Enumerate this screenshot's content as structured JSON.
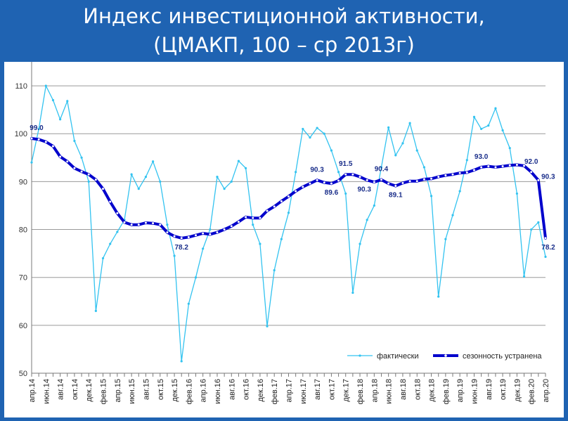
{
  "slide": {
    "title_line1": "Индекс инвестиционной активности,",
    "title_line2": "(ЦМАКП, 100 – ср 2013г)"
  },
  "colors": {
    "background": "#1f63b2",
    "actual": "#33c3f0",
    "seasonal": "#0000cc",
    "grid": "#9a9a9a",
    "label": "#1a2e8a"
  },
  "chart_data": {
    "type": "line",
    "x": [
      "апр.14",
      "май.14",
      "июн.14",
      "июл.14",
      "авг.14",
      "сен.14",
      "окт.14",
      "ноя.14",
      "дек.14",
      "янв.15",
      "фев.15",
      "мар.15",
      "апр.15",
      "май.15",
      "июн.15",
      "июл.15",
      "авг.15",
      "сен.15",
      "окт.15",
      "ноя.15",
      "дек.15",
      "янв.16",
      "фев.16",
      "мар.16",
      "апр.16",
      "май.16",
      "июн.16",
      "июл.16",
      "авг.16",
      "сен.16",
      "окт.16",
      "ноя.16",
      "дек.16",
      "янв.17",
      "фев.17",
      "мар.17",
      "апр.17",
      "май.17",
      "июн.17",
      "июл.17",
      "авг.17",
      "сен.17",
      "окт.17",
      "ноя.17",
      "дек.17",
      "янв.18",
      "фев.18",
      "мар.18",
      "апр.18",
      "май.18",
      "июн.18",
      "июл.18",
      "авг.18",
      "сен.18",
      "окт.18",
      "ноя.18",
      "дек.18",
      "янв.19",
      "фев.19",
      "мар.19",
      "апр.19",
      "май.19",
      "июн.19",
      "июл.19",
      "авг.19",
      "сен.19",
      "окт.19",
      "ноя.19",
      "дек.19",
      "янв.20",
      "фев.20",
      "мар.20",
      "апр.20"
    ],
    "x_tick_labels": [
      "апр.14",
      "июн.14",
      "авг.14",
      "окт.14",
      "дек.14",
      "фев.15",
      "апр.15",
      "июн.15",
      "авг.15",
      "окт.15",
      "дек.15",
      "фев.16",
      "апр.16",
      "июн.16",
      "авг.16",
      "окт.16",
      "дек.16",
      "фев.17",
      "апр.17",
      "июн.17",
      "авг.17",
      "окт.17",
      "дек.17",
      "фев.18",
      "апр.18",
      "июн.18",
      "авг.18",
      "окт.18",
      "дек.18",
      "фев.19",
      "апр.19",
      "июн.19",
      "авг.19",
      "окт.19",
      "дек.19",
      "фев.20",
      "апр.20"
    ],
    "y_ticks": [
      50,
      60,
      70,
      80,
      90,
      100,
      110
    ],
    "ylim": [
      50,
      115
    ],
    "grid": "horizontal",
    "legend_position": "bottom-right",
    "series": [
      {
        "name": "фактически",
        "values": [
          94.0,
          101.0,
          110.0,
          107.0,
          103.0,
          106.8,
          98.5,
          95.0,
          90.0,
          63.0,
          74.0,
          77.0,
          79.5,
          82.0,
          91.5,
          88.5,
          91.0,
          94.2,
          90.0,
          81.0,
          74.5,
          52.5,
          64.5,
          70.0,
          76.0,
          80.0,
          91.0,
          88.5,
          90.0,
          94.3,
          92.8,
          81.0,
          77.0,
          59.8,
          71.5,
          78.0,
          83.5,
          92.0,
          101.0,
          99.2,
          101.2,
          100.0,
          96.5,
          92.0,
          87.5,
          66.8,
          77.0,
          82.0,
          85.0,
          93.0,
          101.3,
          95.5,
          98.0,
          102.2,
          96.5,
          93.0,
          87.0,
          66.0,
          78.0,
          83.0,
          88.0,
          94.5,
          103.5,
          101.0,
          101.7,
          105.3,
          100.7,
          97.0,
          87.5,
          70.2,
          80.0,
          81.5,
          74.3
        ]
      },
      {
        "name": "сезонность устранена",
        "values": [
          99.0,
          98.8,
          98.3,
          97.4,
          95.2,
          94.2,
          92.8,
          92.1,
          91.5,
          90.4,
          88.5,
          85.8,
          83.4,
          81.5,
          81.0,
          81.0,
          81.4,
          81.3,
          81.0,
          79.4,
          78.6,
          78.2,
          78.4,
          78.8,
          79.2,
          79.0,
          79.4,
          80.0,
          80.7,
          81.6,
          82.6,
          82.4,
          82.4,
          83.9,
          84.8,
          85.9,
          86.9,
          88.0,
          88.9,
          89.6,
          90.3,
          89.8,
          89.6,
          90.2,
          91.5,
          91.5,
          91.0,
          90.3,
          89.9,
          90.4,
          89.6,
          89.1,
          89.7,
          90.1,
          90.1,
          90.5,
          90.6,
          91.0,
          91.3,
          91.5,
          91.8,
          91.9,
          92.4,
          93.0,
          93.2,
          93.0,
          93.2,
          93.4,
          93.5,
          93.3,
          92.0,
          90.3,
          78.2
        ]
      }
    ],
    "annotations": [
      {
        "series": "сезонность устранена",
        "x": "апр.14",
        "text": "99.0"
      },
      {
        "series": "сезонность устранена",
        "x": "янв.16",
        "text": "78.2"
      },
      {
        "series": "сезонность устранена",
        "x": "авг.17",
        "text": "90.3"
      },
      {
        "series": "сезонность устранена",
        "x": "окт.17",
        "text": "89.6"
      },
      {
        "series": "сезонность устранена",
        "x": "дек.17",
        "text": "91.5"
      },
      {
        "series": "сезонность устранена",
        "x": "мар.18",
        "text": "90.3"
      },
      {
        "series": "сезонность устранена",
        "x": "май.18",
        "text": "90.4"
      },
      {
        "series": "сезонность устранена",
        "x": "июл.18",
        "text": "89.1"
      },
      {
        "series": "сезонность устранена",
        "x": "июл.19",
        "text": "93.0"
      },
      {
        "series": "сезонность устранена",
        "x": "фев.20",
        "text": "92.0"
      },
      {
        "series": "сезонность устранена",
        "x": "мар.20",
        "text": "90.3"
      },
      {
        "series": "сезонность устранена",
        "x": "апр.20",
        "text": "78.2"
      }
    ]
  }
}
